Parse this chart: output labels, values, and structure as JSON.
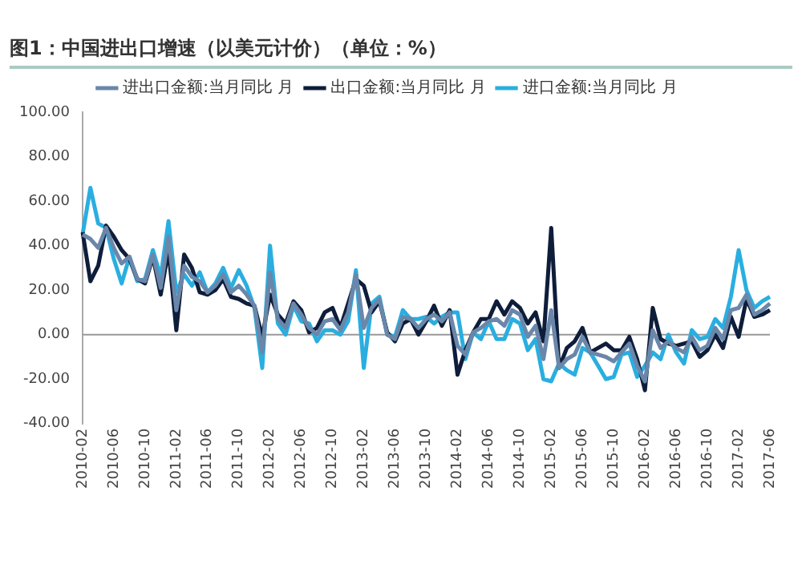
{
  "chart_data": {
    "type": "line",
    "title": "图1：中国进出口增速（以美元计价）（单位：%）",
    "categories": [
      "2010-02",
      null,
      null,
      null,
      "2010-06",
      null,
      null,
      null,
      "2010-10",
      null,
      null,
      null,
      "2011-02",
      null,
      null,
      null,
      "2011-06",
      null,
      null,
      null,
      "2011-10",
      null,
      null,
      null,
      "2012-02",
      null,
      null,
      null,
      "2012-06",
      null,
      null,
      null,
      "2012-10",
      null,
      null,
      null,
      "2013-02",
      null,
      null,
      null,
      "2013-06",
      null,
      null,
      null,
      "2013-10",
      null,
      null,
      null,
      "2014-02",
      null,
      null,
      null,
      "2014-06",
      null,
      null,
      null,
      "2014-10",
      null,
      null,
      null,
      "2015-02",
      null,
      null,
      null,
      "2015-06",
      null,
      null,
      null,
      "2015-10",
      null,
      null,
      null,
      "2016-02",
      null,
      null,
      null,
      "2016-06",
      null,
      null,
      null,
      "2016-10",
      null,
      null,
      null,
      "2017-02",
      null,
      null,
      null,
      "2017-06"
    ],
    "series": [
      {
        "name": "进出口金额:当月同比 月",
        "color": "#6a87aa",
        "values": [
          45,
          43,
          39,
          48,
          39,
          32,
          35,
          25,
          24,
          36,
          21,
          44,
          11,
          31,
          26,
          24,
          19,
          22,
          27,
          19,
          22,
          18,
          13,
          -8,
          28,
          7,
          3,
          14,
          9,
          3,
          0,
          6,
          7,
          2,
          10,
          27,
          3,
          12,
          16,
          0,
          -2,
          8,
          7,
          3,
          7,
          9,
          6,
          10,
          -5,
          -9,
          1,
          3,
          6,
          7,
          4,
          11,
          9,
          -1,
          4,
          -11,
          11,
          -15,
          -11,
          -9,
          -1,
          -8,
          -9,
          -10,
          -12,
          -8,
          -4,
          -14,
          -21,
          2,
          -6,
          -3,
          -6,
          -8,
          -1,
          -7,
          -5,
          3,
          -2,
          11,
          12,
          18,
          9,
          11,
          14
        ]
      },
      {
        "name": "出口金额:当月同比 月",
        "color": "#0e1d3a",
        "values": [
          46,
          24,
          31,
          49,
          44,
          38,
          34,
          25,
          23,
          35,
          18,
          38,
          2,
          36,
          30,
          19,
          18,
          20,
          25,
          17,
          16,
          14,
          13,
          -1,
          18,
          9,
          5,
          15,
          11,
          1,
          3,
          10,
          12,
          3,
          14,
          25,
          22,
          10,
          15,
          1,
          -3,
          5,
          7,
          0,
          6,
          13,
          4,
          11,
          -18,
          -7,
          1,
          7,
          7,
          15,
          9,
          15,
          12,
          5,
          10,
          -3,
          48,
          -15,
          -6,
          -3,
          3,
          -8,
          -6,
          -4,
          -7,
          -7,
          -1,
          -11,
          -25,
          12,
          -2,
          -4,
          -5,
          -4,
          -3,
          -10,
          -7,
          0,
          -6,
          8,
          -1,
          16,
          8,
          9,
          11
        ]
      },
      {
        "name": "进口金额:当月同比 月",
        "color": "#2aaee0",
        "values": [
          45,
          66,
          50,
          48,
          34,
          23,
          35,
          24,
          25,
          38,
          26,
          51,
          19,
          27,
          22,
          28,
          19,
          23,
          30,
          21,
          29,
          22,
          12,
          -15,
          40,
          5,
          0,
          13,
          6,
          5,
          -3,
          2,
          2,
          0,
          6,
          29,
          -15,
          14,
          17,
          0,
          -1,
          11,
          7,
          7,
          8,
          5,
          8,
          10,
          10,
          -11,
          1,
          -2,
          6,
          -2,
          -2,
          7,
          5,
          -7,
          -2,
          -20,
          -21,
          -13,
          -16,
          -18,
          -6,
          -8,
          -14,
          -20,
          -19,
          -9,
          -8,
          -19,
          -14,
          -8,
          -11,
          0,
          -8,
          -13,
          2,
          -2,
          -1,
          7,
          3,
          17,
          38,
          20,
          12,
          15,
          17
        ]
      }
    ],
    "ylim": [
      -40,
      100
    ],
    "yticks": [
      {
        "value": -40,
        "label": "-40.00"
      },
      {
        "value": -20,
        "label": "-20.00"
      },
      {
        "value": 0,
        "label": "0.00"
      },
      {
        "value": 20,
        "label": "20.00"
      },
      {
        "value": 40,
        "label": "40.00"
      },
      {
        "value": 60,
        "label": "60.00"
      },
      {
        "value": 80,
        "label": "80.00"
      },
      {
        "value": 100,
        "label": "100.00"
      }
    ],
    "ref_lines": [
      {
        "axis": "y",
        "value": 0,
        "color": "#999999"
      }
    ],
    "legend": "top",
    "marker": "none",
    "line_style": "solid"
  }
}
